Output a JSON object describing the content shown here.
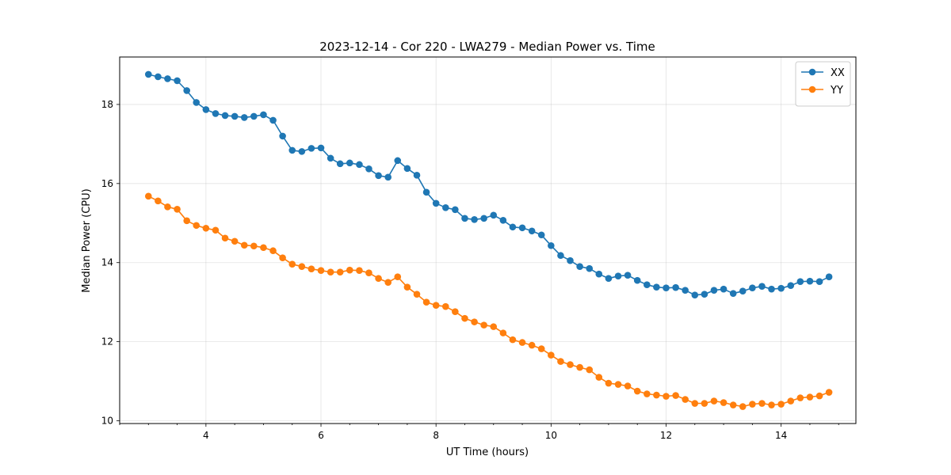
{
  "chart_data": {
    "type": "line",
    "title": "2023-12-14 - Cor 220 - LWA279 - Median Power vs. Time",
    "xlabel": "UT Time (hours)",
    "ylabel": "Median Power (CPU)",
    "xlim": [
      2.5,
      15.3
    ],
    "ylim": [
      9.93,
      19.2
    ],
    "xticks": [
      4,
      6,
      8,
      10,
      12,
      14
    ],
    "yticks": [
      10,
      12,
      14,
      16,
      18
    ],
    "x_minor_step": 0.5,
    "grid": true,
    "legend_position": "top-right",
    "x": [
      3.0,
      3.167,
      3.333,
      3.5,
      3.667,
      3.833,
      4.0,
      4.167,
      4.333,
      4.5,
      4.667,
      4.833,
      5.0,
      5.167,
      5.333,
      5.5,
      5.667,
      5.833,
      6.0,
      6.167,
      6.333,
      6.5,
      6.667,
      6.833,
      7.0,
      7.167,
      7.333,
      7.5,
      7.667,
      7.833,
      8.0,
      8.167,
      8.333,
      8.5,
      8.667,
      8.833,
      9.0,
      9.167,
      9.333,
      9.5,
      9.667,
      9.833,
      10.0,
      10.167,
      10.333,
      10.5,
      10.667,
      10.833,
      11.0,
      11.167,
      11.333,
      11.5,
      11.667,
      11.833,
      12.0,
      12.167,
      12.333,
      12.5,
      12.667,
      12.833,
      13.0,
      13.167,
      13.333,
      13.5,
      13.667,
      13.833,
      14.0,
      14.167,
      14.333,
      14.5,
      14.667,
      14.833
    ],
    "series": [
      {
        "name": "XX",
        "color": "#1f77b4",
        "values": [
          18.76,
          18.7,
          18.65,
          18.6,
          18.35,
          18.05,
          17.87,
          17.77,
          17.72,
          17.7,
          17.67,
          17.7,
          17.74,
          17.6,
          17.2,
          16.84,
          16.81,
          16.89,
          16.9,
          16.64,
          16.5,
          16.52,
          16.48,
          16.37,
          16.2,
          16.16,
          16.58,
          16.38,
          16.21,
          15.78,
          15.5,
          15.39,
          15.34,
          15.12,
          15.09,
          15.12,
          15.2,
          15.07,
          14.9,
          14.88,
          14.8,
          14.7,
          14.43,
          14.18,
          14.05,
          13.9,
          13.85,
          13.71,
          13.6,
          13.66,
          13.68,
          13.55,
          13.44,
          13.38,
          13.36,
          13.37,
          13.3,
          13.18,
          13.2,
          13.3,
          13.33,
          13.22,
          13.28,
          13.36,
          13.4,
          13.33,
          13.35,
          13.42,
          13.52,
          13.53,
          13.52,
          13.64
        ]
      },
      {
        "name": "YY",
        "color": "#ff7f0e",
        "values": [
          15.68,
          15.56,
          15.41,
          15.35,
          15.06,
          14.94,
          14.87,
          14.82,
          14.62,
          14.54,
          14.44,
          14.42,
          14.38,
          14.3,
          14.12,
          13.96,
          13.9,
          13.84,
          13.8,
          13.76,
          13.76,
          13.81,
          13.8,
          13.74,
          13.6,
          13.5,
          13.64,
          13.38,
          13.2,
          13.0,
          12.92,
          12.89,
          12.76,
          12.59,
          12.5,
          12.42,
          12.38,
          12.22,
          12.05,
          11.98,
          11.91,
          11.82,
          11.66,
          11.5,
          11.42,
          11.35,
          11.29,
          11.1,
          10.95,
          10.92,
          10.88,
          10.75,
          10.68,
          10.65,
          10.62,
          10.64,
          10.54,
          10.44,
          10.44,
          10.5,
          10.46,
          10.4,
          10.36,
          10.42,
          10.44,
          10.4,
          10.42,
          10.5,
          10.58,
          10.6,
          10.63,
          10.72
        ]
      }
    ]
  }
}
